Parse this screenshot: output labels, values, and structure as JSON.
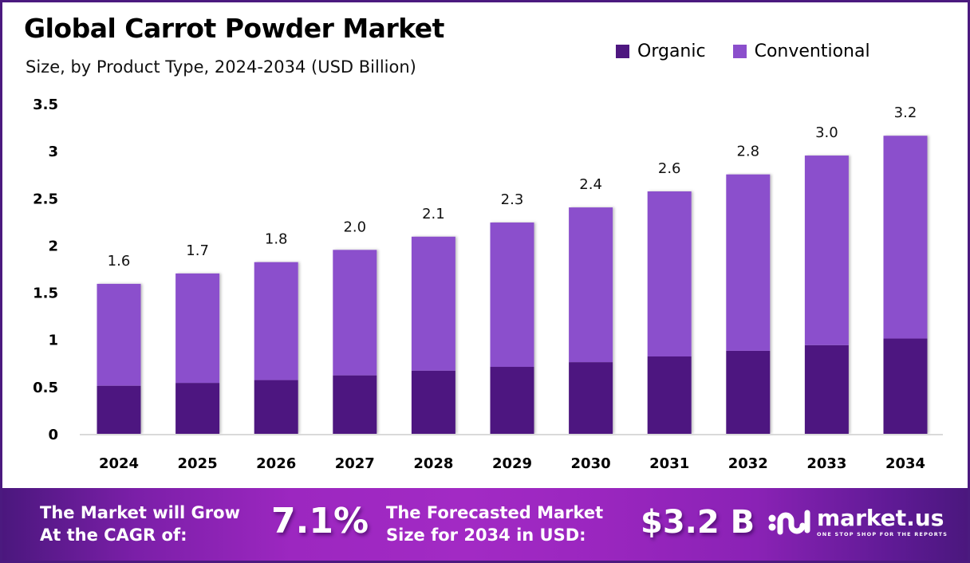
{
  "header": {
    "title": "Global Carrot Powder Market",
    "subtitle": "Size, by Product Type, 2024-2034 (USD Billion)"
  },
  "colors": {
    "organic": "#4e1780",
    "conventional": "#8b4fcc",
    "axis_line": "#d9d9d9",
    "frame": "#4b1a7f"
  },
  "chart_data": {
    "type": "bar",
    "stacked": true,
    "title": "Global Carrot Powder Market",
    "subtitle": "Size, by Product Type, 2024-2034 (USD Billion)",
    "xlabel": "",
    "ylabel": "",
    "categories": [
      "2024",
      "2025",
      "2026",
      "2027",
      "2028",
      "2029",
      "2030",
      "2031",
      "2032",
      "2033",
      "2034"
    ],
    "series": [
      {
        "name": "Organic",
        "values": [
          0.51,
          0.54,
          0.57,
          0.62,
          0.67,
          0.71,
          0.76,
          0.82,
          0.88,
          0.94,
          1.01
        ]
      },
      {
        "name": "Conventional",
        "values": [
          1.08,
          1.16,
          1.25,
          1.33,
          1.42,
          1.53,
          1.64,
          1.75,
          1.87,
          2.01,
          2.15
        ]
      }
    ],
    "totals_labels": [
      "1.6",
      "1.7",
      "1.8",
      "2.0",
      "2.1",
      "2.3",
      "2.4",
      "2.6",
      "2.8",
      "3.0",
      "3.2"
    ],
    "ylim": [
      0,
      3.5
    ],
    "yticks": [
      0,
      0.5,
      1,
      1.5,
      2,
      2.5,
      3,
      3.5
    ],
    "ytick_labels": [
      "0",
      "0.5",
      "1",
      "1.5",
      "2",
      "2.5",
      "3",
      "3.5"
    ],
    "grid": false,
    "legend": {
      "position": "top-right",
      "entries": [
        "Organic",
        "Conventional"
      ]
    }
  },
  "footer": {
    "cagr_text_line1": "The Market will Grow",
    "cagr_text_line2": "At the CAGR of:",
    "cagr_value": "7.1%",
    "forecast_text_line1": "The Forecasted Market",
    "forecast_text_line2": "Size for 2034 in USD:",
    "forecast_value": "$3.2 B",
    "logo_name": "market.us",
    "logo_tagline": "ONE STOP SHOP FOR THE REPORTS"
  }
}
